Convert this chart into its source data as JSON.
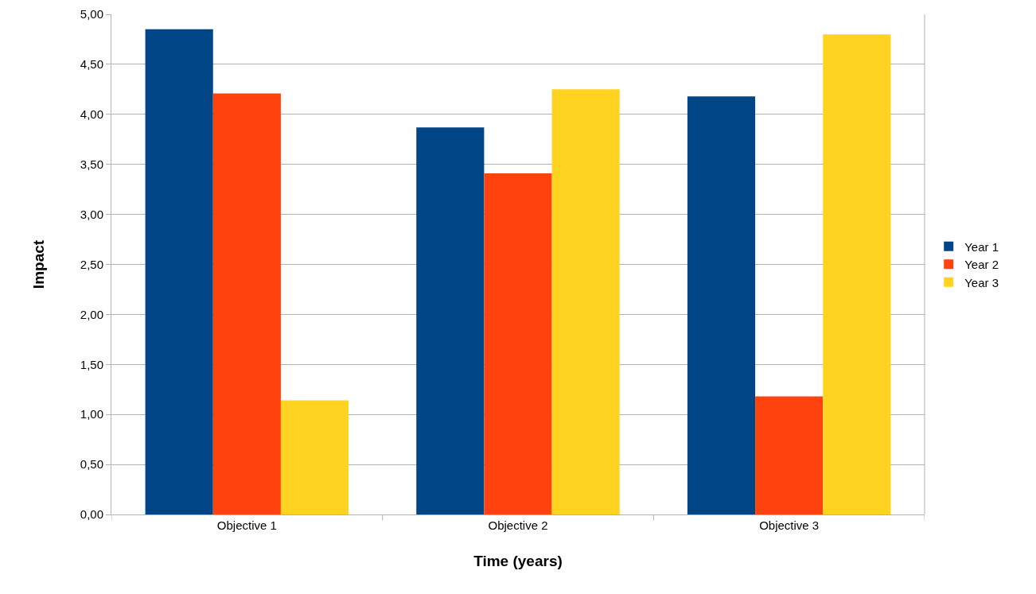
{
  "chart_data": {
    "type": "bar",
    "xlabel": "Time (years)",
    "ylabel": "Impact",
    "categories": [
      "Objective 1",
      "Objective 2",
      "Objective 3"
    ],
    "series": [
      {
        "name": "Year 1",
        "color": "#004586",
        "values": [
          4.85,
          3.87,
          4.18
        ]
      },
      {
        "name": "Year 2",
        "color": "#ff420e",
        "values": [
          4.21,
          3.41,
          1.18
        ]
      },
      {
        "name": "Year 3",
        "color": "#ffd320",
        "values": [
          1.14,
          4.25,
          4.8
        ]
      }
    ],
    "ylim": [
      0,
      5
    ],
    "yticks": [
      {
        "value": 0,
        "label": "0,00"
      },
      {
        "value": 0.5,
        "label": "0,50"
      },
      {
        "value": 1,
        "label": "1,00"
      },
      {
        "value": 1.5,
        "label": "1,50"
      },
      {
        "value": 2,
        "label": "2,00"
      },
      {
        "value": 2.5,
        "label": "2,50"
      },
      {
        "value": 3,
        "label": "3,00"
      },
      {
        "value": 3.5,
        "label": "3,50"
      },
      {
        "value": 4,
        "label": "4,00"
      },
      {
        "value": 4.5,
        "label": "4,50"
      },
      {
        "value": 5,
        "label": "5,00"
      }
    ],
    "grid": "y",
    "legend": "right"
  }
}
